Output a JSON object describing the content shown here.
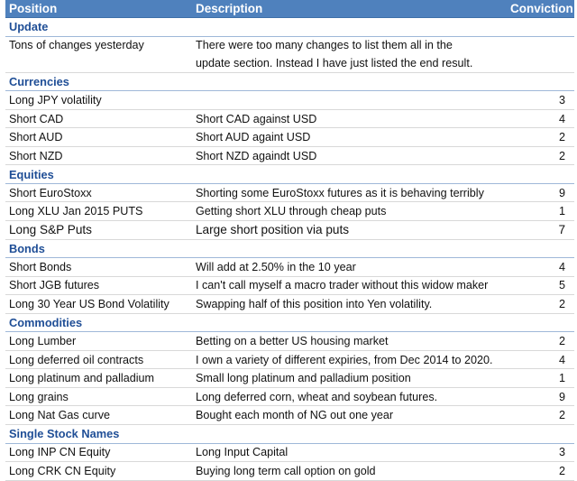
{
  "headers": {
    "position": "Position",
    "description": "Description",
    "conviction": "Conviction"
  },
  "sections": {
    "update": "Update",
    "currencies": "Currencies",
    "equities": "Equities",
    "bonds": "Bonds",
    "commodities": "Commodities",
    "single_stock": "Single Stock Names"
  },
  "update": {
    "position": "Tons of changes yesterday",
    "line1": "There were too many changes to list them all in the",
    "line2": "update section.  Instead I have just listed the end result."
  },
  "currencies": [
    {
      "position": "Long JPY volatility",
      "description": "",
      "conviction": "3"
    },
    {
      "position": "Short CAD",
      "description": "Short CAD against USD",
      "conviction": "4"
    },
    {
      "position": "Short AUD",
      "description": "Short AUD againt USD",
      "conviction": "2"
    },
    {
      "position": "Short NZD",
      "description": "Short NZD againdt USD",
      "conviction": "2"
    }
  ],
  "equities": [
    {
      "position": "Short EuroStoxx",
      "description": "Shorting some EuroStoxx futures as it is behaving terribly",
      "conviction": "9"
    },
    {
      "position": "Long XLU Jan 2015 PUTS",
      "description": "Getting short XLU through cheap puts",
      "conviction": "1"
    },
    {
      "position": "Long S&P Puts",
      "description": "Large short position via puts",
      "conviction": "7"
    }
  ],
  "bonds": [
    {
      "position": "Short Bonds",
      "description": "Will add at 2.50% in the 10 year",
      "conviction": "4"
    },
    {
      "position": "Short JGB futures",
      "description": "I can't call myself a macro trader without this widow maker",
      "conviction": "5"
    },
    {
      "position": "Long 30 Year US Bond Volatility",
      "description": "Swapping half of this position into Yen volatility.",
      "conviction": "2"
    }
  ],
  "commodities": [
    {
      "position": "Long Lumber",
      "description": "Betting on a better US housing market",
      "conviction": "2"
    },
    {
      "position": "Long deferred oil contracts",
      "description": "I own a variety of different expiries, from Dec 2014 to 2020.",
      "conviction": "4"
    },
    {
      "position": "Long platinum and palladium",
      "description": "Small long platinum and palladium position",
      "conviction": "1"
    },
    {
      "position": "Long grains",
      "description": "Long deferred corn, wheat and soybean futures.",
      "conviction": "9"
    },
    {
      "position": "Long Nat Gas curve",
      "description": "Bought each month of NG out one year",
      "conviction": "2"
    }
  ],
  "single_stock": [
    {
      "position": "Long INP CN Equity",
      "description": "Long Input Capital",
      "conviction": "3"
    },
    {
      "position": "Long CRK CN Equity",
      "description": "Buying long term call option on gold",
      "conviction": "2"
    }
  ]
}
